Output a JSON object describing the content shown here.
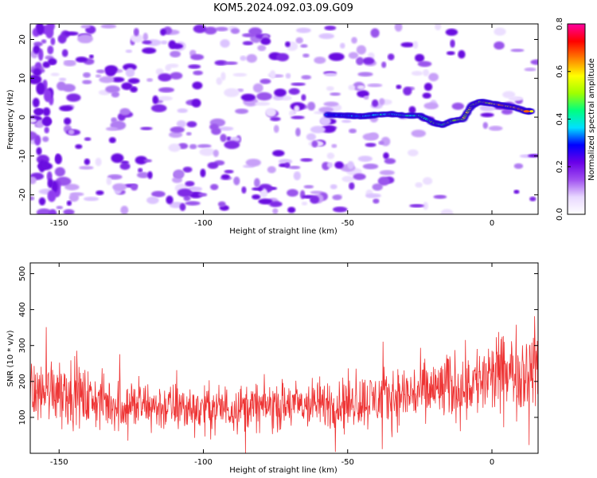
{
  "title": "KOM5.2024.092.03.09.G09",
  "chart_data": [
    {
      "type": "heatmap",
      "xlabel": "Height of straight line (km)",
      "ylabel": "Frequency (Hz)",
      "xlim": [
        -160,
        16
      ],
      "ylim": [
        -25,
        24
      ],
      "xticks": [
        -150,
        -100,
        -50,
        0
      ],
      "yticks": [
        -20,
        -10,
        0,
        10,
        20
      ],
      "colorbar": {
        "label": "Normalized spectral amplitude",
        "range": [
          0.0,
          0.8
        ],
        "ticks": [
          "0.0",
          "0.2",
          "0.4",
          "0.6",
          "0.8"
        ],
        "colors": [
          "#ffffff",
          "#e8d8ff",
          "#a050f0",
          "#6a00e8",
          "#0000ff",
          "#00e0ff",
          "#00ff80",
          "#a0ff00",
          "#ffff00",
          "#ff8000",
          "#ff0000",
          "#ff00a0"
        ]
      },
      "signal_trace": {
        "x": [
          -57,
          -50,
          -45,
          -40,
          -35,
          -30,
          -25,
          -20,
          -17,
          -14,
          -10,
          -7,
          -4,
          0,
          4,
          8,
          12,
          14
        ],
        "y": [
          0.6,
          0.4,
          0.2,
          0.6,
          0.8,
          0.4,
          0.4,
          -1.5,
          -2.0,
          -1.0,
          -0.5,
          3.0,
          4.0,
          3.5,
          3.0,
          2.5,
          1.5,
          1.5
        ]
      }
    },
    {
      "type": "line",
      "xlabel": "Height of straight line (km)",
      "ylabel": "SNR (10 * v/v)",
      "xlim": [
        -160,
        16
      ],
      "ylim": [
        0,
        530
      ],
      "xticks": [
        -150,
        -100,
        -50,
        0
      ],
      "yticks": [
        100,
        200,
        300,
        400,
        500
      ],
      "color": "#ee3333",
      "trend_x": [
        -160,
        -150,
        -140,
        -130,
        -120,
        -100,
        -80,
        -60,
        -40,
        -20,
        0,
        10,
        16
      ],
      "trend_y": [
        165,
        185,
        150,
        135,
        130,
        125,
        130,
        135,
        150,
        175,
        210,
        230,
        240
      ],
      "spread": [
        95,
        110,
        90,
        85,
        80,
        75,
        75,
        80,
        90,
        105,
        120,
        130,
        135
      ]
    }
  ]
}
